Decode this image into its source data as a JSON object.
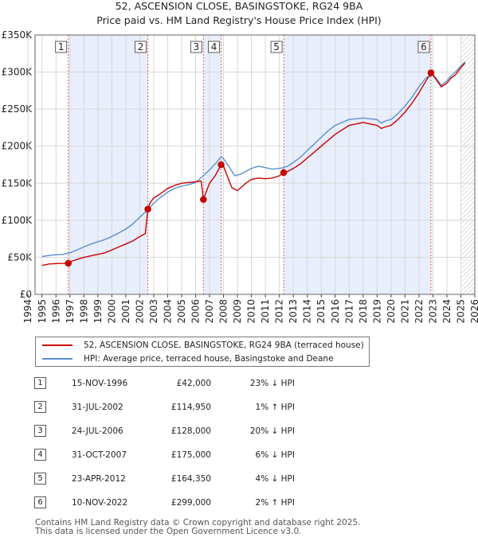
{
  "chart_data": {
    "type": "line",
    "title": "52, ASCENSION CLOSE, BASINGSTOKE, RG24 9BA",
    "subtitle": "Price paid vs. HM Land Registry's House Price Index (HPI)",
    "xlabel": "",
    "ylabel": "",
    "xlim": [
      1994.5,
      2026.0
    ],
    "ylim": [
      0,
      350000
    ],
    "yticks": [
      0,
      50000,
      100000,
      150000,
      200000,
      250000,
      300000,
      350000
    ],
    "ytick_labels": [
      "£0",
      "£50K",
      "£100K",
      "£150K",
      "£200K",
      "£250K",
      "£300K",
      "£350K"
    ],
    "xticks": [
      1994,
      1995,
      1996,
      1997,
      1998,
      1999,
      2000,
      2001,
      2002,
      2003,
      2004,
      2005,
      2006,
      2007,
      2008,
      2009,
      2010,
      2011,
      2012,
      2013,
      2014,
      2015,
      2016,
      2017,
      2018,
      2019,
      2020,
      2021,
      2022,
      2023,
      2024,
      2025,
      2026
    ],
    "xtick_labels": [
      "1994",
      "1995",
      "1996",
      "1997",
      "1998",
      "1999",
      "2000",
      "2001",
      "2002",
      "2003",
      "2004",
      "2005",
      "2006",
      "2007",
      "2008",
      "2009",
      "2010",
      "2011",
      "2012",
      "2013",
      "2014",
      "2015",
      "2016",
      "2017",
      "2018",
      "2019",
      "2020",
      "2021",
      "2022",
      "2023",
      "2024",
      "2025",
      "2026"
    ],
    "grid": true,
    "series": [
      {
        "name": "52, ASCENSION CLOSE, BASINGSTOKE, RG24 9BA (terraced house)",
        "color": "#cc0000",
        "x": [
          1995.0,
          1995.5,
          1996.0,
          1996.5,
          1996.88,
          1997.0,
          1997.5,
          1998.0,
          1998.5,
          1999.0,
          1999.5,
          2000.0,
          2000.5,
          2001.0,
          2001.5,
          2002.0,
          2002.4,
          2002.58,
          2002.75,
          2003.0,
          2003.5,
          2004.0,
          2004.5,
          2005.0,
          2005.5,
          2006.0,
          2006.4,
          2006.56,
          2006.75,
          2007.0,
          2007.4,
          2007.83,
          2008.0,
          2008.3,
          2008.6,
          2009.0,
          2009.3,
          2009.6,
          2010.0,
          2010.5,
          2011.0,
          2011.5,
          2012.0,
          2012.31,
          2012.6,
          2013.0,
          2013.5,
          2014.0,
          2014.5,
          2015.0,
          2015.5,
          2016.0,
          2016.5,
          2017.0,
          2017.5,
          2018.0,
          2018.5,
          2019.0,
          2019.3,
          2019.6,
          2020.0,
          2020.5,
          2021.0,
          2021.5,
          2022.0,
          2022.5,
          2022.86,
          2023.0,
          2023.3,
          2023.6,
          2024.0,
          2024.3,
          2024.6,
          2025.0,
          2025.3
        ],
        "values": [
          39000,
          41000,
          41500,
          41800,
          42000,
          44000,
          47000,
          50000,
          52000,
          54000,
          56000,
          60000,
          64000,
          68000,
          72000,
          78000,
          82000,
          114950,
          124000,
          130000,
          136000,
          143000,
          147000,
          150000,
          151000,
          152000,
          153000,
          128000,
          138000,
          150000,
          160000,
          175000,
          173000,
          158000,
          144000,
          140000,
          145000,
          150000,
          155000,
          157000,
          156000,
          157000,
          160000,
          164350,
          166000,
          170000,
          176000,
          184000,
          192000,
          200000,
          208000,
          216000,
          222000,
          228000,
          230000,
          232000,
          230000,
          228000,
          224000,
          226000,
          228000,
          236000,
          246000,
          258000,
          272000,
          288000,
          299000,
          296000,
          288000,
          280000,
          285000,
          292000,
          296000,
          306000,
          312000
        ]
      },
      {
        "name": "HPI: Average price, terraced house, Basingstoke and Deane",
        "color": "#5b8fd0",
        "x": [
          1995.0,
          1995.5,
          1996.0,
          1996.5,
          1997.0,
          1997.5,
          1998.0,
          1998.5,
          1999.0,
          1999.5,
          2000.0,
          2000.5,
          2001.0,
          2001.5,
          2002.0,
          2002.58,
          2003.0,
          2003.5,
          2004.0,
          2004.5,
          2005.0,
          2005.5,
          2006.0,
          2006.56,
          2007.0,
          2007.5,
          2007.83,
          2008.0,
          2008.4,
          2008.8,
          2009.2,
          2009.6,
          2010.0,
          2010.5,
          2011.0,
          2011.5,
          2012.0,
          2012.31,
          2012.6,
          2013.0,
          2013.5,
          2014.0,
          2014.5,
          2015.0,
          2015.5,
          2016.0,
          2016.5,
          2017.0,
          2017.5,
          2018.0,
          2018.5,
          2019.0,
          2019.3,
          2019.6,
          2020.0,
          2020.5,
          2021.0,
          2021.5,
          2022.0,
          2022.5,
          2022.86,
          2023.0,
          2023.3,
          2023.6,
          2024.0,
          2024.3,
          2024.6,
          2025.0,
          2025.3
        ],
        "values": [
          51000,
          52500,
          53500,
          54000,
          56000,
          60000,
          64000,
          68000,
          71000,
          74000,
          78000,
          83000,
          88000,
          95000,
          104000,
          114000,
          123000,
          131000,
          138000,
          143000,
          146000,
          148000,
          151000,
          160000,
          168000,
          178000,
          186000,
          183000,
          172000,
          160000,
          162000,
          166000,
          170000,
          173000,
          171000,
          169000,
          170000,
          171000,
          173000,
          178000,
          185000,
          194000,
          203000,
          212000,
          221000,
          228000,
          232000,
          236000,
          237000,
          238000,
          237000,
          236000,
          231000,
          234000,
          236000,
          244000,
          254000,
          266000,
          280000,
          292000,
          295000,
          297000,
          290000,
          282000,
          288000,
          295000,
          300000,
          308000,
          314000
        ]
      }
    ],
    "sales": [
      {
        "n": "1",
        "x": 1996.88,
        "value": 42000
      },
      {
        "n": "2",
        "x": 2002.58,
        "value": 114950
      },
      {
        "n": "3",
        "x": 2006.56,
        "value": 128000
      },
      {
        "n": "4",
        "x": 2007.83,
        "value": 175000
      },
      {
        "n": "5",
        "x": 2012.31,
        "value": 164350
      },
      {
        "n": "6",
        "x": 2022.86,
        "value": 299000
      }
    ],
    "shaded_spans": [
      [
        1996.88,
        2002.58
      ],
      [
        2006.56,
        2007.83
      ],
      [
        2012.31,
        2022.86
      ]
    ],
    "future_hatch_start": 2025.0
  },
  "legend": {
    "property_label": "52, ASCENSION CLOSE, BASINGSTOKE, RG24 9BA (terraced house)",
    "hpi_label": "HPI: Average price, terraced house, Basingstoke and Deane",
    "property_color": "#cc0000",
    "hpi_color": "#5b8fd0"
  },
  "sales_table": [
    {
      "n": "1",
      "date": "15-NOV-1996",
      "price": "£42,000",
      "hpi": "23% ↓ HPI"
    },
    {
      "n": "2",
      "date": "31-JUL-2002",
      "price": "£114,950",
      "hpi": "1% ↑ HPI"
    },
    {
      "n": "3",
      "date": "24-JUL-2006",
      "price": "£128,000",
      "hpi": "20% ↓ HPI"
    },
    {
      "n": "4",
      "date": "31-OCT-2007",
      "price": "£175,000",
      "hpi": "6% ↓ HPI"
    },
    {
      "n": "5",
      "date": "23-APR-2012",
      "price": "£164,350",
      "hpi": "4% ↓ HPI"
    },
    {
      "n": "6",
      "date": "10-NOV-2022",
      "price": "£299,000",
      "hpi": "2% ↑ HPI"
    }
  ],
  "footer": {
    "line1": "Contains HM Land Registry data © Crown copyright and database right 2025.",
    "line2": "This data is licensed under the Open Government Licence v3.0."
  }
}
